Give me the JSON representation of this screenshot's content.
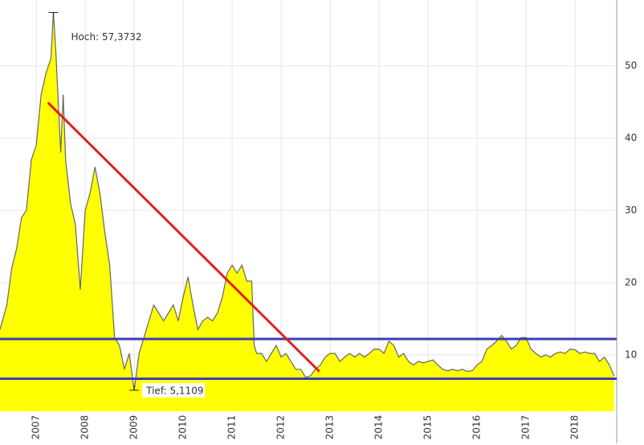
{
  "chart_data": {
    "type": "area",
    "x": [
      2006.26,
      2006.4,
      2006.5,
      2006.6,
      2006.7,
      2006.8,
      2006.9,
      2007.0,
      2007.1,
      2007.2,
      2007.3,
      2007.35,
      2007.4,
      2007.5,
      2007.55,
      2007.6,
      2007.7,
      2007.8,
      2007.9,
      2008.0,
      2008.1,
      2008.2,
      2008.3,
      2008.4,
      2008.5,
      2008.6,
      2008.7,
      2008.8,
      2008.9,
      2009.0,
      2009.1,
      2009.2,
      2009.3,
      2009.4,
      2009.5,
      2009.6,
      2009.7,
      2009.8,
      2009.9,
      2010.0,
      2010.1,
      2010.2,
      2010.3,
      2010.4,
      2010.5,
      2010.6,
      2010.7,
      2010.8,
      2010.9,
      2011.0,
      2011.1,
      2011.2,
      2011.3,
      2011.4,
      2011.45,
      2011.5,
      2011.6,
      2011.7,
      2011.8,
      2011.9,
      2012.0,
      2012.1,
      2012.2,
      2012.3,
      2012.4,
      2012.5,
      2012.6,
      2012.7,
      2012.8,
      2012.9,
      2013.0,
      2013.1,
      2013.2,
      2013.3,
      2013.4,
      2013.5,
      2013.6,
      2013.7,
      2013.8,
      2013.9,
      2014.0,
      2014.1,
      2014.2,
      2014.3,
      2014.4,
      2014.5,
      2014.6,
      2014.7,
      2014.8,
      2014.9,
      2015.0,
      2015.1,
      2015.2,
      2015.3,
      2015.4,
      2015.5,
      2015.6,
      2015.7,
      2015.8,
      2015.9,
      2016.0,
      2016.1,
      2016.2,
      2016.3,
      2016.4,
      2016.5,
      2016.6,
      2016.7,
      2016.8,
      2016.9,
      2017.0,
      2017.1,
      2017.2,
      2017.3,
      2017.4,
      2017.5,
      2017.6,
      2017.7,
      2017.8,
      2017.9,
      2018.0,
      2018.1,
      2018.2,
      2018.3,
      2018.4,
      2018.5,
      2018.6,
      2018.7,
      2018.8
    ],
    "values": [
      13.5,
      16.9,
      22,
      24.7,
      29,
      30,
      37,
      39,
      46,
      49,
      51,
      57.3732,
      52,
      38,
      46,
      37,
      31,
      28,
      19,
      30,
      32.4,
      36,
      32.4,
      27,
      22.4,
      12.4,
      11.3,
      8,
      10.2,
      5.1109,
      10.2,
      12.4,
      14.7,
      16.9,
      15.8,
      14.7,
      15.8,
      16.9,
      14.7,
      18,
      20.8,
      16.9,
      13.5,
      14.7,
      15.2,
      14.7,
      15.8,
      18,
      21.3,
      22.4,
      21.3,
      22.4,
      20.2,
      20.2,
      11.3,
      10.2,
      10.2,
      9.1,
      10.2,
      11.3,
      9.7,
      10.2,
      9.1,
      8,
      8,
      6.9,
      7.1,
      8,
      8.6,
      9.7,
      10.2,
      10.2,
      9.1,
      9.7,
      10.2,
      9.7,
      10.2,
      9.7,
      10.2,
      10.8,
      10.8,
      10.2,
      11.9,
      11.3,
      9.7,
      10.2,
      9.1,
      8.6,
      9.1,
      8.9,
      9.1,
      9.3,
      8.6,
      8,
      7.8,
      8,
      7.8,
      8,
      7.7,
      7.8,
      8.6,
      9.1,
      10.8,
      11.3,
      11.9,
      12.7,
      11.9,
      10.8,
      11.3,
      12.4,
      12.4,
      10.8,
      10.2,
      9.7,
      10,
      9.7,
      10.2,
      10.4,
      10.2,
      10.8,
      10.7,
      10.2,
      10.4,
      10.2,
      10.2,
      9.1,
      9.7,
      8.6,
      7.1
    ],
    "color": "#ffff00",
    "line_color": "#666666",
    "xlim": [
      2006.26,
      2018.85
    ],
    "xticks": [
      2007,
      2008,
      2009,
      2010,
      2011,
      2012,
      2013,
      2014,
      2015,
      2016,
      2017,
      2018
    ],
    "ylim": [
      2.2,
      59.1
    ],
    "yticks": [
      10,
      20,
      30,
      40,
      50
    ],
    "grid": true,
    "annotations": [
      {
        "label": "Hoch: 57,3732",
        "x": 2007.35,
        "y": 57.3732
      },
      {
        "label": "Tief: 5,1109",
        "x": 2009.0,
        "y": 5.1109
      }
    ],
    "hlines": [
      {
        "value": 12.2,
        "color": "#3c3cb4"
      },
      {
        "value": 6.7,
        "color": "#3c3cb4"
      }
    ],
    "trendline": {
      "x": [
        2007.24,
        2012.78
      ],
      "values": [
        44.9,
        7.7
      ],
      "color": "#e02020"
    }
  }
}
